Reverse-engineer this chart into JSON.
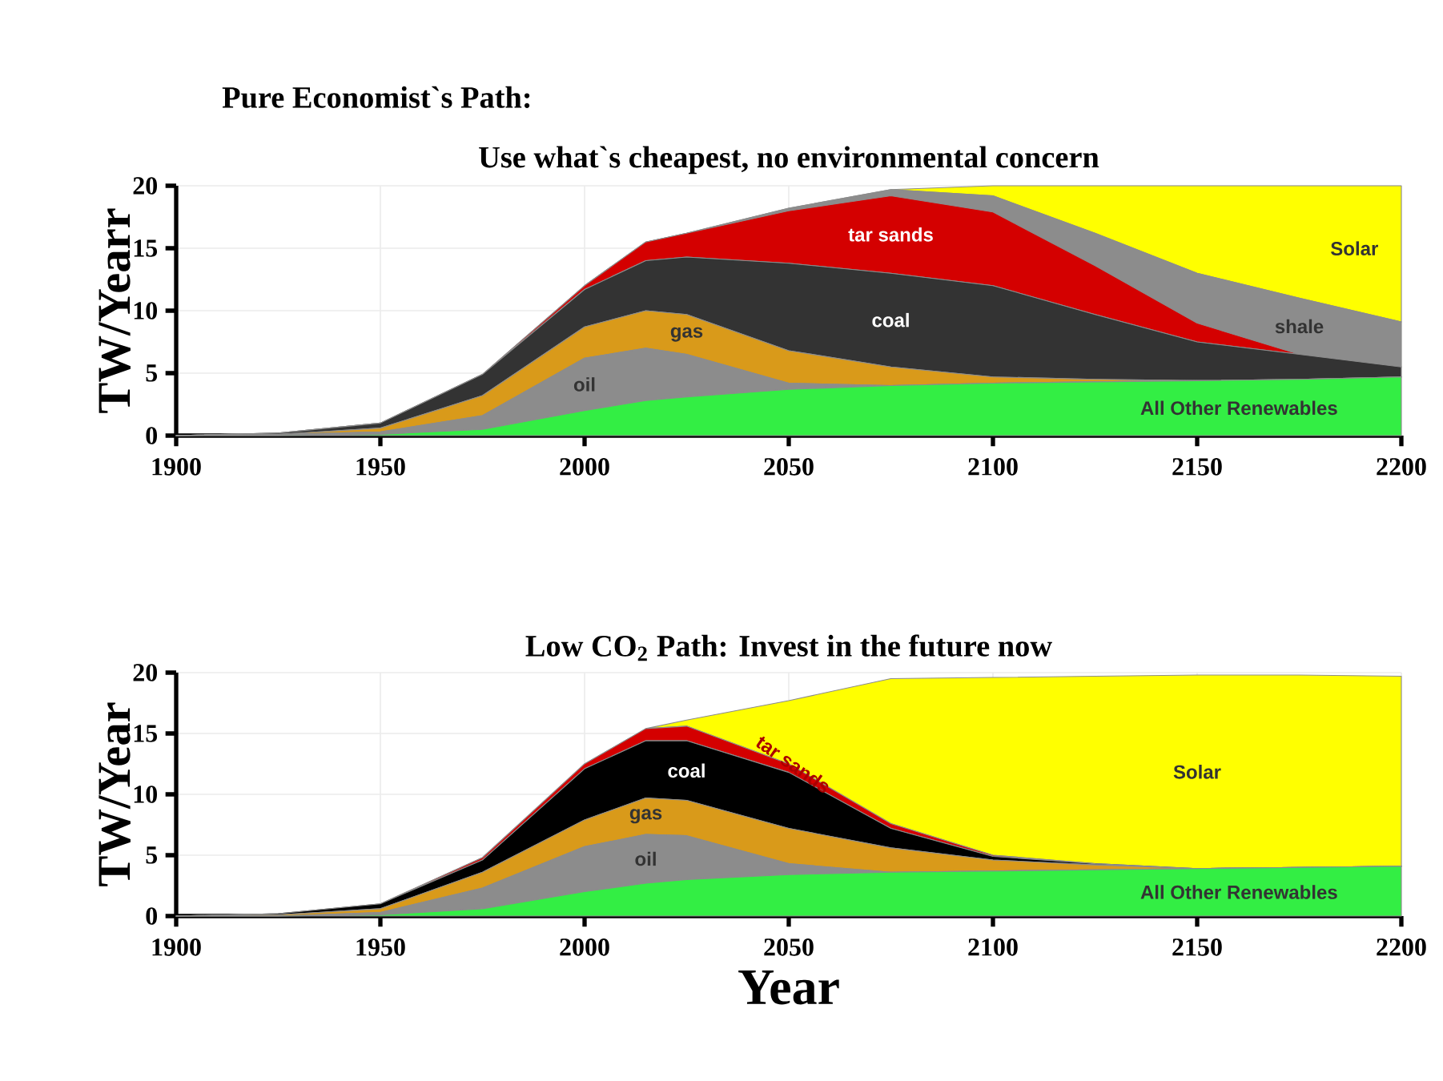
{
  "chart_data": [
    {
      "type": "area",
      "title": "Pure Economist`s Path:",
      "subtitle": "Use what`s cheapest, no environmental concern",
      "ylabel": "TW/Yearr",
      "stacked": true,
      "grid": true,
      "x": [
        1900,
        1925,
        1950,
        1975,
        2000,
        2015,
        2025,
        2050,
        2075,
        2100,
        2125,
        2150,
        2175,
        2200
      ],
      "xlim": [
        1900,
        2200
      ],
      "xticks": [
        1900,
        1950,
        2000,
        2050,
        2100,
        2150,
        2200
      ],
      "ylim": [
        0,
        20
      ],
      "yticks": [
        0,
        5,
        10,
        15,
        20
      ],
      "series": [
        {
          "name": "All Other Renewables",
          "color": "#33ee44",
          "values": [
            0,
            0,
            0.1,
            0.5,
            2.0,
            2.8,
            3.1,
            3.7,
            4.0,
            4.2,
            4.3,
            4.4,
            4.5,
            4.7
          ]
        },
        {
          "name": "oil",
          "color": "#8c8c8c",
          "values": [
            0,
            0.1,
            0.2,
            1.1,
            4.2,
            4.2,
            3.4,
            0.5,
            0,
            0,
            0,
            0,
            0,
            0
          ]
        },
        {
          "name": "gas",
          "color": "#d99a1a",
          "values": [
            0,
            0,
            0.3,
            1.6,
            2.5,
            3.0,
            3.2,
            2.6,
            1.5,
            0.5,
            0.2,
            0,
            0,
            0
          ]
        },
        {
          "name": "coal",
          "color": "#333333",
          "values": [
            0,
            0.1,
            0.4,
            1.7,
            3.0,
            4.0,
            4.6,
            7.0,
            7.5,
            7.3,
            5.2,
            3.1,
            2.0,
            0.8
          ]
        },
        {
          "name": "tar sands",
          "color": "#d40000",
          "values": [
            0,
            0,
            0,
            0,
            0.3,
            1.5,
            1.9,
            4.2,
            6.2,
            5.9,
            3.9,
            1.5,
            0,
            0
          ]
        },
        {
          "name": "shale",
          "color": "#8c8c8c",
          "values": [
            0,
            0,
            0,
            0,
            0,
            0,
            0,
            0.2,
            0.5,
            1.3,
            2.6,
            4.0,
            4.5,
            3.6
          ]
        },
        {
          "name": "Solar",
          "color": "#ffff00",
          "values": [
            0,
            0,
            0,
            0,
            0,
            0,
            0,
            0,
            0,
            0.8,
            3.8,
            7.0,
            9.0,
            10.9
          ]
        }
      ]
    },
    {
      "type": "area",
      "title": "Low CO$_{2}$ Path: Invest in the future now",
      "xlabel": "Year",
      "ylabel": "TW/Year",
      "stacked": true,
      "grid": true,
      "x": [
        1900,
        1925,
        1950,
        1975,
        2000,
        2015,
        2025,
        2050,
        2075,
        2100,
        2125,
        2150,
        2175,
        2200
      ],
      "xlim": [
        1900,
        2200
      ],
      "xticks": [
        1900,
        1950,
        2000,
        2050,
        2100,
        2150,
        2200
      ],
      "ylim": [
        0,
        20
      ],
      "yticks": [
        0,
        5,
        10,
        15,
        20
      ],
      "series": [
        {
          "name": "All Other Renewables",
          "color": "#33ee44",
          "values": [
            0,
            0,
            0.1,
            0.6,
            2.0,
            2.7,
            3.0,
            3.4,
            3.6,
            3.7,
            3.8,
            3.9,
            4.0,
            4.1
          ]
        },
        {
          "name": "oil",
          "color": "#8c8c8c",
          "values": [
            0,
            0,
            0.2,
            1.7,
            3.7,
            4.0,
            3.6,
            0.9,
            0,
            0,
            0,
            0,
            0,
            0
          ]
        },
        {
          "name": "gas",
          "color": "#d99a1a",
          "values": [
            0,
            0.1,
            0.3,
            1.3,
            2.2,
            3.0,
            2.9,
            2.9,
            2.0,
            0.9,
            0.4,
            0,
            0,
            0
          ]
        },
        {
          "name": "coal",
          "color": "#000000",
          "values": [
            0,
            0.1,
            0.4,
            1.0,
            4.2,
            4.7,
            4.9,
            4.6,
            1.6,
            0.3,
            0.1,
            0,
            0,
            0
          ]
        },
        {
          "name": "tar sands",
          "color": "#d40000",
          "values": [
            0,
            0,
            0,
            0.2,
            0.4,
            1.0,
            1.2,
            0.7,
            0.4,
            0.1,
            0,
            0,
            0,
            0
          ]
        },
        {
          "name": "Solar",
          "color": "#ffff00",
          "values": [
            0,
            0,
            0,
            0,
            0,
            0,
            0.5,
            5.2,
            11.9,
            14.6,
            15.4,
            15.9,
            15.8,
            15.6
          ]
        }
      ]
    }
  ]
}
